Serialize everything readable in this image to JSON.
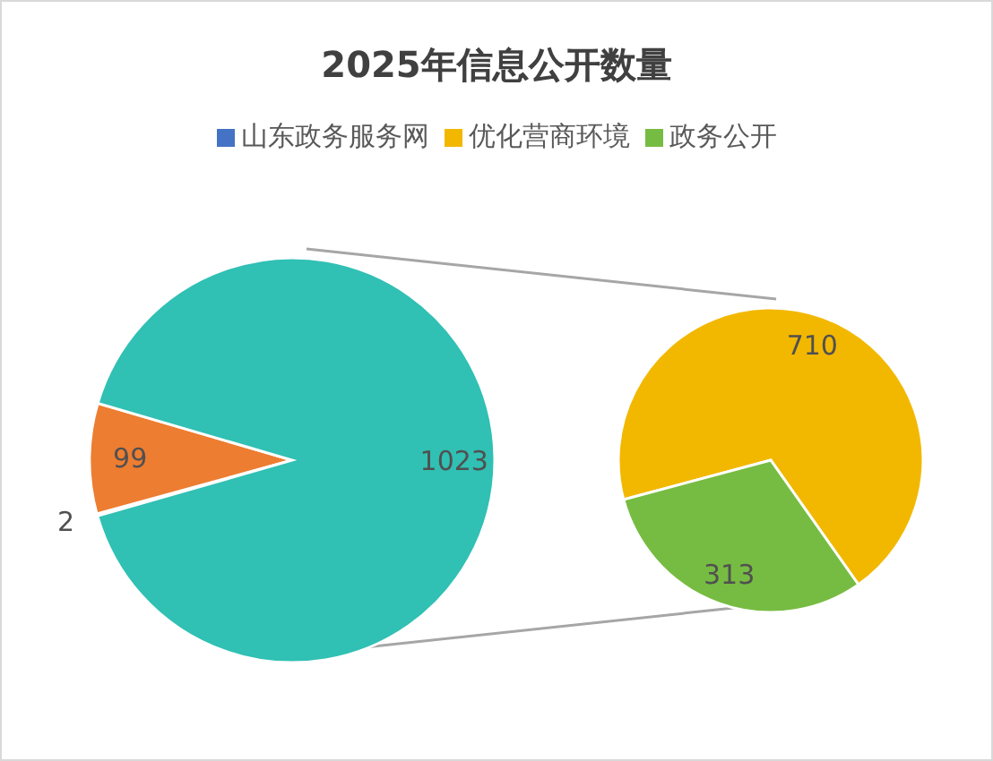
{
  "chart_data": [
    {
      "type": "pie",
      "title": "2025年信息公开数量",
      "categories": [
        "山东政务服务网",
        null,
        null
      ],
      "values": [
        2,
        99,
        1023
      ],
      "colors": [
        "#4472c4",
        "#ed7d31",
        "#30c0b4"
      ],
      "data_labels": true,
      "legend": "top"
    },
    {
      "type": "pie",
      "categories": [
        "优化营商环境",
        "政务公开"
      ],
      "values": [
        710,
        313
      ],
      "colors": [
        "#f2b800",
        "#76bc42"
      ],
      "data_labels": true,
      "legend": "top"
    }
  ]
}
